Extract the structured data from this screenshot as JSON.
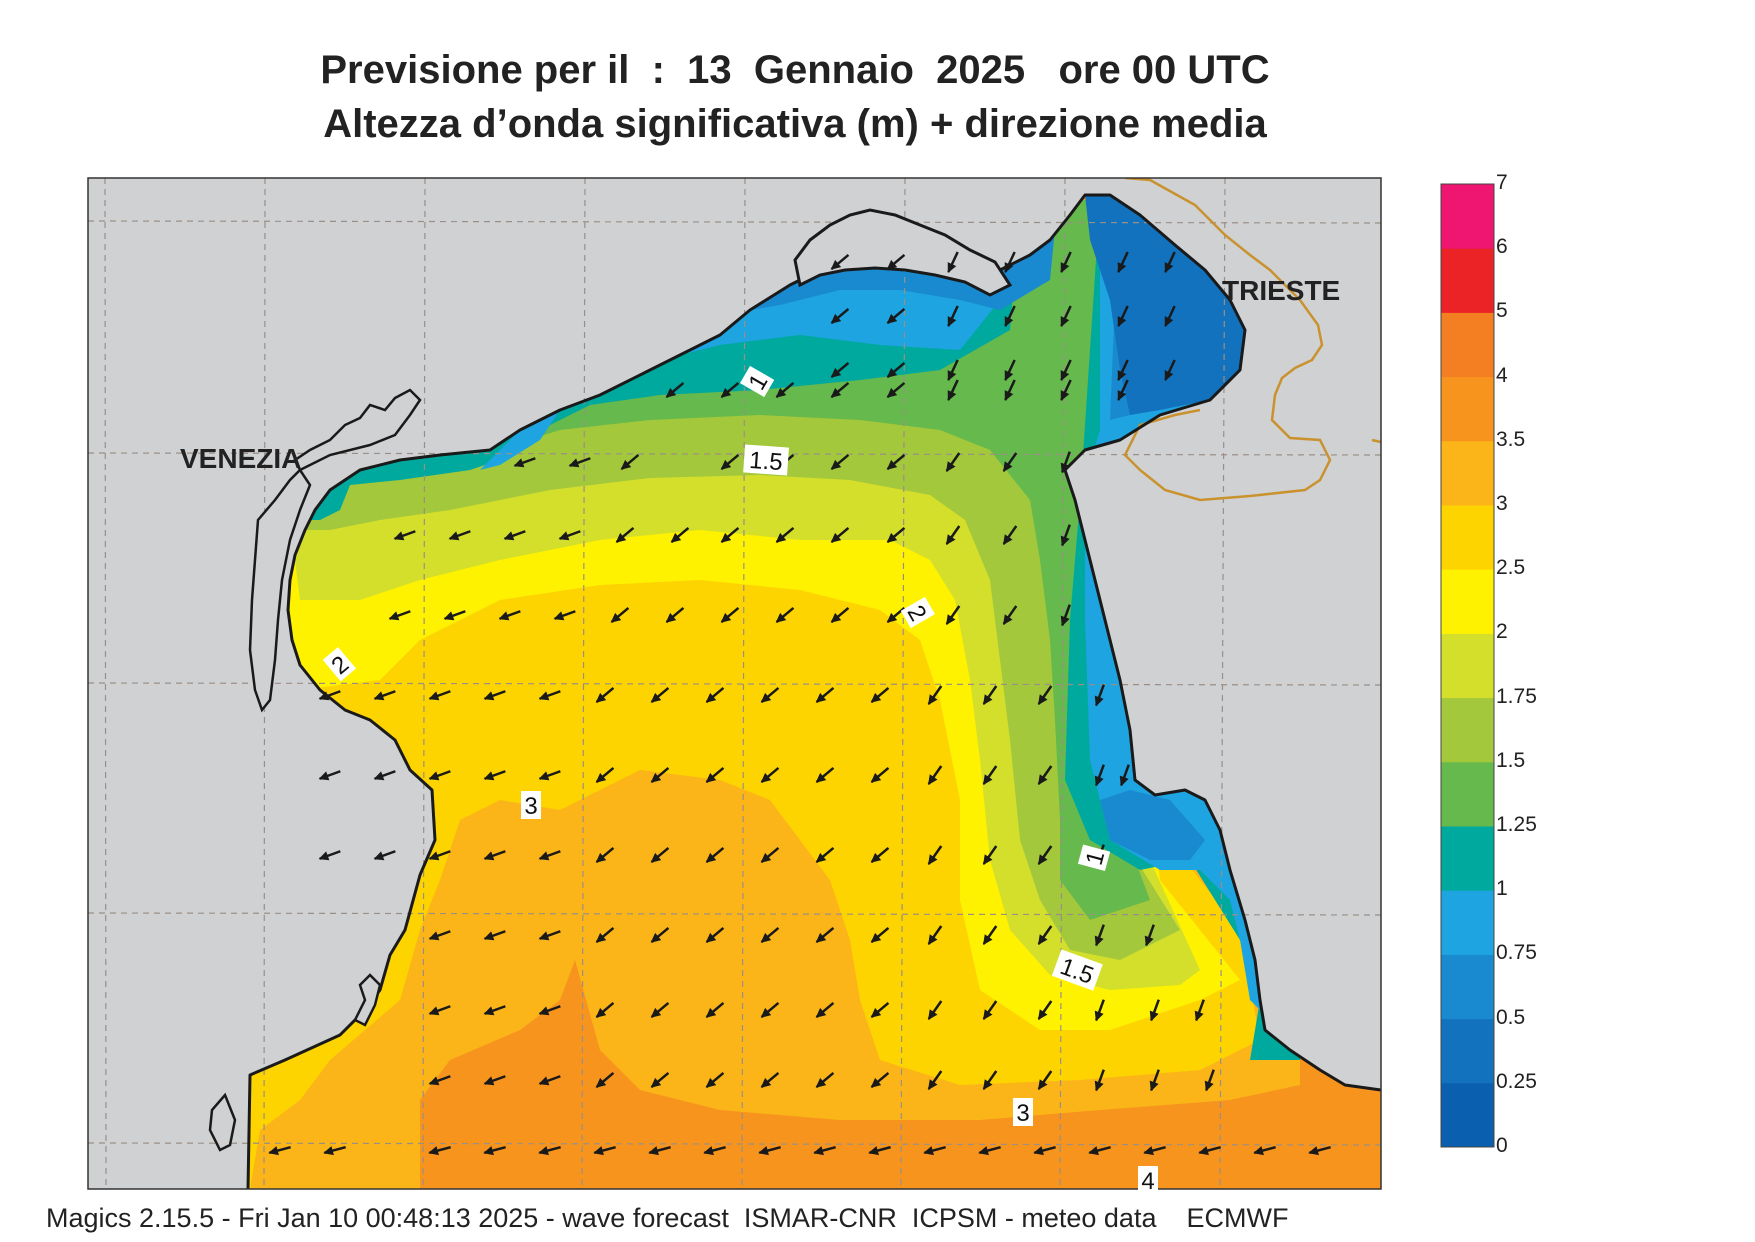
{
  "title": {
    "line1": "Previsione per il  :  13  Gennaio  2025   ore 00 UTC",
    "line2": "Altezza d’onda significativa (m) + direzione media"
  },
  "places": {
    "venezia": "VENEZIA",
    "trieste": "TRIESTE"
  },
  "contour_labels": [
    "1",
    "1.5",
    "2",
    "2",
    "3",
    "1",
    "1.5",
    "3",
    "4"
  ],
  "colorbar": {
    "ticks": [
      "0",
      "0.25",
      "0.5",
      "0.75",
      "1",
      "1.25",
      "1.5",
      "1.75",
      "2",
      "2.5",
      "3",
      "3.5",
      "4",
      "5",
      "6",
      "7"
    ],
    "colors": [
      "#0a5fae",
      "#1372bd",
      "#1a8ad0",
      "#1ea4e0",
      "#00a99d",
      "#66b94d",
      "#a3c83c",
      "#d4df2b",
      "#fff200",
      "#fdd400",
      "#fbb519",
      "#f7941d",
      "#f37f22",
      "#ec2326",
      "#ee1670"
    ]
  },
  "colors": {
    "land": "#d0d1d3",
    "grid": "#9a8f86",
    "border": "#c9922e",
    "coast": "#1a1a1a",
    "arrow": "#1a1a1a"
  },
  "footer": "Magics 2.15.5 - Fri Jan 10 00:48:13 2025 - wave forecast  ISMAR-CNR  ICPSM - meteo data    ECMWF"
}
